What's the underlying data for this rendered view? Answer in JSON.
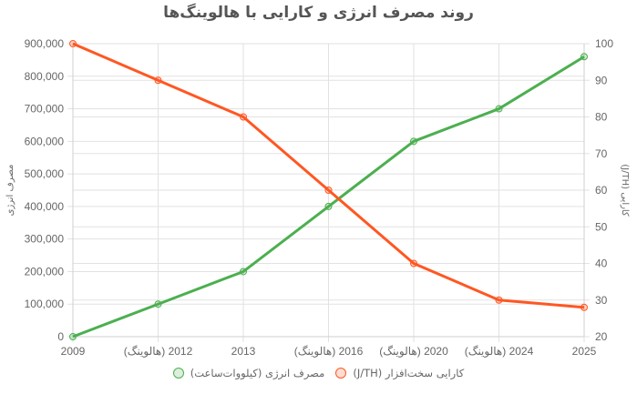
{
  "chart_data": {
    "type": "line",
    "title": "روند مصرف انرژی و کارایی با هالوینگ‌ها",
    "categories": [
      "2009",
      "2012 (هالوینگ)",
      "2013",
      "2016 (هالوینگ)",
      "2020 (هالوینگ)",
      "2024 (هالوینگ)",
      "2025"
    ],
    "series": [
      {
        "name": "مصرف انرژی (کیلووات‌ساعت)",
        "axis": "left",
        "color": "#4caf50",
        "values": [
          0,
          100000,
          200000,
          400000,
          600000,
          700000,
          860000
        ]
      },
      {
        "name": "کارایی سخت‌افزار (J/TH)",
        "axis": "right",
        "color": "#ff5722",
        "values": [
          100,
          90,
          80,
          60,
          40,
          30,
          28
        ]
      }
    ],
    "ylabel": "مصرف انرژی",
    "y2label": "کارایی (J/TH)",
    "ylim": [
      0,
      900000
    ],
    "y2lim": [
      20,
      100
    ],
    "yticks": [
      "0",
      "100,000",
      "200,000",
      "300,000",
      "400,000",
      "500,000",
      "600,000",
      "700,000",
      "800,000",
      "900,000"
    ],
    "y2ticks": [
      "20",
      "30",
      "40",
      "50",
      "60",
      "70",
      "80",
      "90",
      "100"
    ],
    "grid": true,
    "legend_position": "bottom"
  },
  "legend": [
    {
      "label": "مصرف انرژی (کیلووات‌ساعت)",
      "color": "#4caf50",
      "fill": "rgba(76,175,80,0.2)"
    },
    {
      "label": "کارایی سخت‌افزار (J/TH)",
      "color": "#ff5722",
      "fill": "rgba(255,87,34,0.2)"
    }
  ]
}
